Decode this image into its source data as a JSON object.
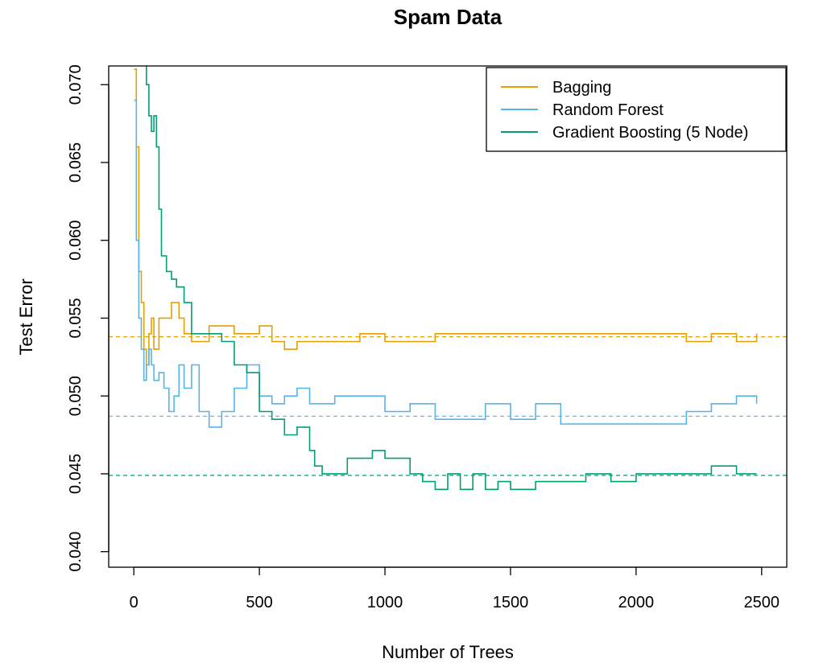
{
  "chart_data": {
    "type": "line",
    "title": "Spam Data",
    "xlabel": "Number of Trees",
    "ylabel": "Test Error",
    "xlim": [
      -100,
      2600
    ],
    "ylim": [
      0.039,
      0.0712
    ],
    "xticks": [
      0,
      500,
      1000,
      1500,
      2000,
      2500
    ],
    "xtick_labels": [
      "0",
      "500",
      "1000",
      "1500",
      "2000",
      "2500"
    ],
    "yticks": [
      0.04,
      0.045,
      0.05,
      0.055,
      0.06,
      0.065,
      0.07
    ],
    "ytick_labels": [
      "0.040",
      "0.045",
      "0.050",
      "0.055",
      "0.060",
      "0.065",
      "0.070"
    ],
    "legend_position": "top-right",
    "grid": false,
    "series": [
      {
        "name": "Bagging",
        "color": "#E69F00",
        "x": [
          1,
          10,
          20,
          30,
          40,
          50,
          60,
          70,
          80,
          100,
          120,
          150,
          180,
          200,
          230,
          260,
          300,
          350,
          400,
          450,
          500,
          550,
          600,
          650,
          700,
          800,
          900,
          1000,
          1100,
          1200,
          1300,
          1400,
          1500,
          1600,
          1700,
          1800,
          1900,
          2000,
          2100,
          2200,
          2300,
          2400,
          2480
        ],
        "values": [
          0.071,
          0.066,
          0.058,
          0.056,
          0.053,
          0.052,
          0.054,
          0.055,
          0.053,
          0.055,
          0.055,
          0.056,
          0.055,
          0.054,
          0.0535,
          0.0535,
          0.0545,
          0.0545,
          0.054,
          0.054,
          0.0545,
          0.0535,
          0.053,
          0.0535,
          0.0535,
          0.0535,
          0.054,
          0.0535,
          0.0535,
          0.054,
          0.054,
          0.054,
          0.054,
          0.054,
          0.054,
          0.054,
          0.054,
          0.054,
          0.054,
          0.0535,
          0.054,
          0.0535,
          0.054
        ]
      },
      {
        "name": "Random Forest",
        "color": "#56B4E9",
        "x": [
          1,
          10,
          20,
          30,
          40,
          50,
          60,
          70,
          80,
          100,
          120,
          140,
          160,
          180,
          200,
          230,
          260,
          300,
          350,
          400,
          450,
          500,
          550,
          600,
          650,
          700,
          800,
          900,
          1000,
          1100,
          1200,
          1300,
          1400,
          1500,
          1600,
          1700,
          1800,
          1900,
          2000,
          2100,
          2200,
          2300,
          2400,
          2480
        ],
        "values": [
          0.069,
          0.06,
          0.055,
          0.053,
          0.051,
          0.052,
          0.053,
          0.052,
          0.051,
          0.0515,
          0.0505,
          0.049,
          0.05,
          0.052,
          0.0505,
          0.052,
          0.049,
          0.048,
          0.049,
          0.0505,
          0.052,
          0.05,
          0.0495,
          0.05,
          0.0505,
          0.0495,
          0.05,
          0.05,
          0.049,
          0.0495,
          0.0485,
          0.0485,
          0.0495,
          0.0485,
          0.0495,
          0.0482,
          0.0482,
          0.0482,
          0.0482,
          0.0482,
          0.049,
          0.0495,
          0.05,
          0.0495
        ]
      },
      {
        "name": "Gradient Boosting (5 Node)",
        "color": "#009E73",
        "x": [
          40,
          50,
          60,
          70,
          80,
          90,
          100,
          110,
          130,
          150,
          170,
          200,
          230,
          260,
          300,
          350,
          400,
          450,
          500,
          550,
          600,
          650,
          700,
          720,
          750,
          800,
          850,
          900,
          950,
          1000,
          1050,
          1100,
          1150,
          1200,
          1250,
          1300,
          1350,
          1400,
          1450,
          1500,
          1600,
          1700,
          1800,
          1900,
          2000,
          2100,
          2200,
          2300,
          2400,
          2480
        ],
        "values": [
          0.0715,
          0.07,
          0.068,
          0.067,
          0.068,
          0.066,
          0.062,
          0.059,
          0.058,
          0.0575,
          0.057,
          0.056,
          0.054,
          0.054,
          0.054,
          0.0535,
          0.052,
          0.0515,
          0.049,
          0.0485,
          0.0475,
          0.048,
          0.0465,
          0.0455,
          0.045,
          0.045,
          0.046,
          0.046,
          0.0465,
          0.046,
          0.046,
          0.045,
          0.0445,
          0.044,
          0.045,
          0.044,
          0.045,
          0.044,
          0.0445,
          0.044,
          0.0445,
          0.0445,
          0.045,
          0.0445,
          0.045,
          0.045,
          0.045,
          0.0455,
          0.045,
          0.045
        ]
      }
    ],
    "reference_lines": [
      {
        "series": "Bagging",
        "y": 0.0538,
        "style": "dashed"
      },
      {
        "series": "Random Forest",
        "y": 0.0487,
        "style": "dashed"
      },
      {
        "series": "Gradient Boosting (5 Node)",
        "y": 0.0449,
        "style": "dashed"
      }
    ]
  }
}
